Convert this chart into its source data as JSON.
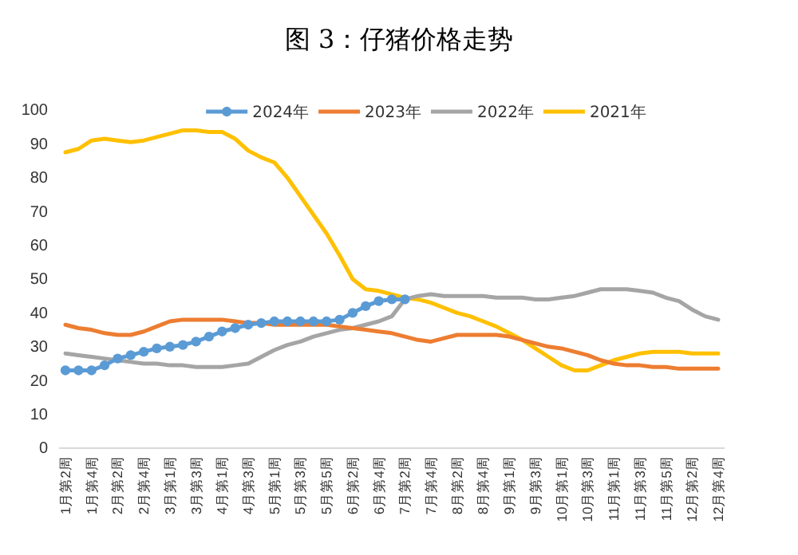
{
  "chart_data": {
    "type": "line",
    "title": "图 3：仔猪价格走势",
    "categories": [
      "1月第2周",
      null,
      "1月第4周",
      null,
      "2月第2周",
      null,
      "2月第4周",
      null,
      "3月第1周",
      null,
      "3月第3周",
      null,
      "4月第1周",
      null,
      "4月第3周",
      null,
      "5月第1周",
      null,
      "5月第3周",
      null,
      "5月第5周",
      null,
      "6月第2周",
      null,
      "6月第4周",
      null,
      "7月第2周",
      null,
      "7月第4周",
      null,
      "8月第2周",
      null,
      "8月第4周",
      null,
      "9月第1周",
      null,
      "9月第3周",
      null,
      "10月第1周",
      null,
      "10月第3周",
      null,
      "11月第1周",
      null,
      "11月第3周",
      null,
      "11月第5周",
      null,
      "12月第2周",
      null,
      "12月第4周"
    ],
    "series": [
      {
        "name": "2024年",
        "color": "#5b9bd5",
        "marker": "circle",
        "values": [
          23,
          23,
          23,
          24.5,
          26.5,
          27.5,
          28.5,
          29.5,
          30,
          30.5,
          31.5,
          33,
          34.5,
          35.5,
          36.5,
          37,
          37.5,
          37.5,
          37.5,
          37.5,
          37.5,
          38,
          40,
          42,
          43.5,
          44,
          44,
          null,
          null,
          null,
          null,
          null,
          null,
          null,
          null,
          null,
          null,
          null,
          null,
          null,
          null,
          null,
          null,
          null,
          null,
          null,
          null,
          null,
          null,
          null,
          null
        ]
      },
      {
        "name": "2023年",
        "color": "#ed7d31",
        "values": [
          36.5,
          35.5,
          35,
          34,
          33.5,
          33.5,
          34.5,
          36,
          37.5,
          38,
          38,
          38,
          38,
          37.5,
          37,
          37,
          36.5,
          36.5,
          36.5,
          36.5,
          36.5,
          36,
          35.5,
          35,
          34.5,
          34,
          33,
          32,
          31.5,
          32.5,
          33.5,
          33.5,
          33.5,
          33.5,
          33,
          32,
          31,
          30,
          29.5,
          28.5,
          27.5,
          26,
          25,
          24.5,
          24.5,
          24,
          24,
          23.5,
          23.5,
          23.5,
          23.5
        ]
      },
      {
        "name": "2022年",
        "color": "#a5a5a5",
        "values": [
          28,
          27.5,
          27,
          26.5,
          26,
          25.5,
          25,
          25,
          24.5,
          24.5,
          24,
          24,
          24,
          24.5,
          25,
          27,
          29,
          30.5,
          31.5,
          33,
          34,
          35,
          35.5,
          36.5,
          37.5,
          39,
          44,
          45,
          45.5,
          45,
          45,
          45,
          45,
          44.5,
          44.5,
          44.5,
          44,
          44,
          44.5,
          45,
          46,
          47,
          47,
          47,
          46.5,
          46,
          44.5,
          43.5,
          41,
          39,
          38
        ]
      },
      {
        "name": "2021年",
        "color": "#ffc000",
        "values": [
          87.5,
          88.5,
          91,
          91.5,
          91,
          90.5,
          91,
          92,
          93,
          94,
          94,
          93.5,
          93.5,
          91.5,
          88,
          86,
          84.5,
          80,
          74.5,
          69,
          63.5,
          57,
          50,
          47,
          46.5,
          45.5,
          44.5,
          44,
          43,
          41.5,
          40,
          39,
          37.5,
          36,
          34,
          32,
          29.5,
          27,
          24.5,
          23,
          23,
          24.5,
          26,
          27,
          28,
          28.5,
          28.5,
          28.5,
          28,
          28,
          28
        ]
      }
    ],
    "ylim": [
      0,
      100
    ],
    "yticks": [
      0,
      10,
      20,
      30,
      40,
      50,
      60,
      70,
      80,
      90,
      100
    ],
    "grid": false,
    "legend": "top",
    "marker": "none",
    "line_style": "solid"
  }
}
